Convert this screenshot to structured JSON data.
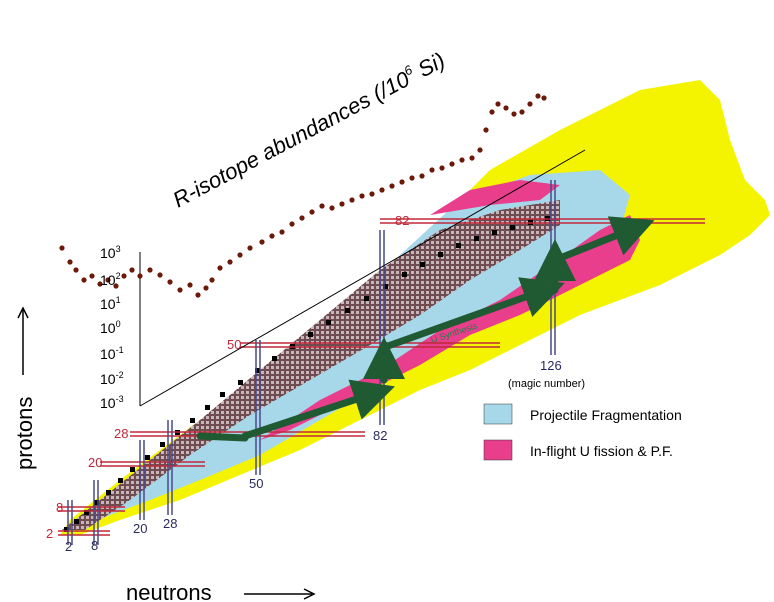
{
  "title": "R-isotope abundances (/10",
  "title_sup": "6",
  "title_tail": " Si)",
  "axis_x_label": "neutrons",
  "axis_y_label": "protons",
  "abundance_axis": {
    "ticks": [
      {
        "base": "10",
        "exp": "3"
      },
      {
        "base": "10",
        "exp": "2"
      },
      {
        "base": "10",
        "exp": "1"
      },
      {
        "base": "10",
        "exp": "0"
      },
      {
        "base": "10",
        "exp": "-1"
      },
      {
        "base": "10",
        "exp": "-2"
      },
      {
        "base": "10",
        "exp": "-3"
      }
    ]
  },
  "magic_proton_labels": [
    "2",
    "8",
    "20",
    "28",
    "50",
    "82"
  ],
  "magic_neutron_labels": [
    "2",
    "8",
    "20",
    "28",
    "50",
    "82",
    "126"
  ],
  "magic_number_note": "(magic number)",
  "u_synthesis_label": "U Synthesis",
  "legend": [
    {
      "label": "Projectile Fragmentation",
      "color": "#a7d8ea"
    },
    {
      "label": "In-flight U fission & P.F.",
      "color": "#e83e8c"
    }
  ],
  "colors": {
    "yellow": "#f4f400",
    "blue": "#a7d8ea",
    "magenta": "#e83e8c",
    "stable_band": "#8a6a6e",
    "arrow": "#1f5a32",
    "magic_line_red": "#c0283a",
    "magic_line_blue": "#4a4a8a",
    "abundance_dot": "#6b1a0a"
  }
}
